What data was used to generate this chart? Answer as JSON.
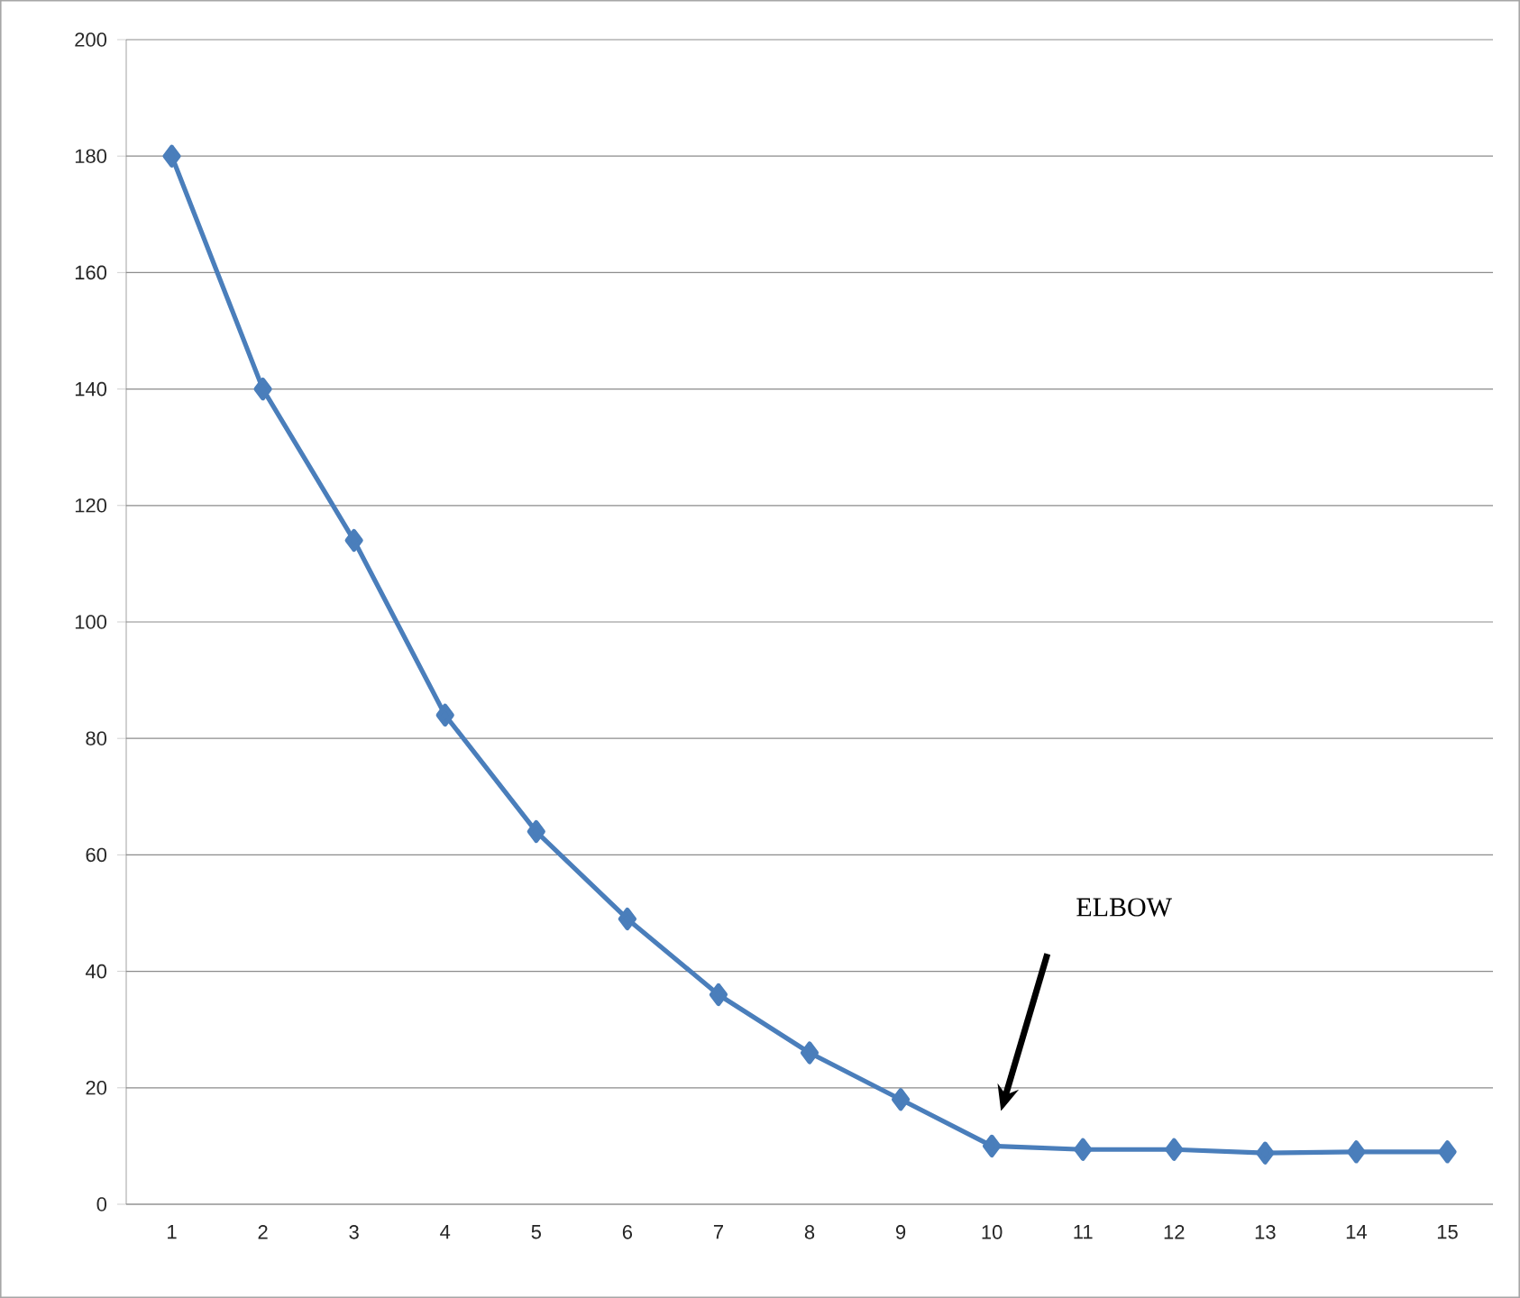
{
  "chart_data": {
    "type": "line",
    "categories": [
      "1",
      "2",
      "3",
      "4",
      "5",
      "6",
      "7",
      "8",
      "9",
      "10",
      "11",
      "12",
      "13",
      "14",
      "15"
    ],
    "series": [
      {
        "color": "#4a7ebb",
        "values": [
          180,
          140,
          114,
          84,
          64,
          49,
          36,
          26,
          18,
          10,
          9.4,
          9.4,
          8.8,
          9,
          9
        ]
      }
    ],
    "ylim": [
      0,
      200
    ],
    "yticks": [
      0,
      20,
      40,
      60,
      80,
      100,
      120,
      140,
      160,
      180,
      200
    ],
    "grid": "y",
    "marker": "diamond",
    "line_style": "solid",
    "annotations": [
      "ELBOW"
    ]
  }
}
